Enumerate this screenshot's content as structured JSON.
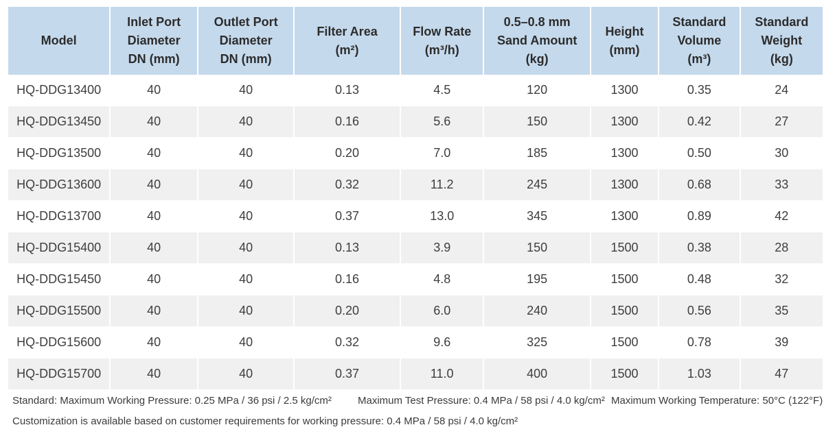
{
  "table": {
    "headers": [
      [
        "Model"
      ],
      [
        "Inlet Port",
        "Diameter",
        "DN (mm)"
      ],
      [
        "Outlet Port",
        "Diameter",
        "DN (mm)"
      ],
      [
        "Filter Area",
        "(m²)"
      ],
      [
        "Flow Rate",
        "(m³/h)"
      ],
      [
        "0.5–0.8 mm",
        "Sand Amount",
        "(kg)"
      ],
      [
        "Height",
        "(mm)"
      ],
      [
        "Standard",
        "Volume",
        "(m³)"
      ],
      [
        "Standard",
        "Weight",
        "(kg)"
      ]
    ],
    "rows": [
      [
        "HQ-DDG13400",
        "40",
        "40",
        "0.13",
        "4.5",
        "120",
        "1300",
        "0.35",
        "24"
      ],
      [
        "HQ-DDG13450",
        "40",
        "40",
        "0.16",
        "5.6",
        "150",
        "1300",
        "0.42",
        "27"
      ],
      [
        "HQ-DDG13500",
        "40",
        "40",
        "0.20",
        "7.0",
        "185",
        "1300",
        "0.50",
        "30"
      ],
      [
        "HQ-DDG13600",
        "40",
        "40",
        "0.32",
        "11.2",
        "245",
        "1300",
        "0.68",
        "33"
      ],
      [
        "HQ-DDG13700",
        "40",
        "40",
        "0.37",
        "13.0",
        "345",
        "1300",
        "0.89",
        "42"
      ],
      [
        "HQ-DDG15400",
        "40",
        "40",
        "0.13",
        "3.9",
        "150",
        "1500",
        "0.38",
        "28"
      ],
      [
        "HQ-DDG15450",
        "40",
        "40",
        "0.16",
        "4.8",
        "195",
        "1500",
        "0.48",
        "32"
      ],
      [
        "HQ-DDG15500",
        "40",
        "40",
        "0.20",
        "6.0",
        "240",
        "1500",
        "0.56",
        "35"
      ],
      [
        "HQ-DDG15600",
        "40",
        "40",
        "0.32",
        "9.6",
        "325",
        "1500",
        "0.78",
        "39"
      ],
      [
        "HQ-DDG15700",
        "40",
        "40",
        "0.37",
        "11.0",
        "400",
        "1500",
        "1.03",
        "47"
      ]
    ]
  },
  "notes": {
    "standard_pressure": "Standard: Maximum Working Pressure: 0.25 MPa / 36 psi / 2.5 kg/cm²",
    "test_pressure": "Maximum Test Pressure: 0.4 MPa / 58 psi / 4.0 kg/cm²",
    "working_temperature": "Maximum Working Temperature: 50°C (122°F)",
    "customization": "Customization is available based on customer requirements for working pressure: 0.4 MPa / 58 psi / 4.0 kg/cm²"
  },
  "colors": {
    "header_bg": "#c5d9ec",
    "row_alt_bg": "#f0f0f0",
    "row_bg": "#ffffff"
  }
}
